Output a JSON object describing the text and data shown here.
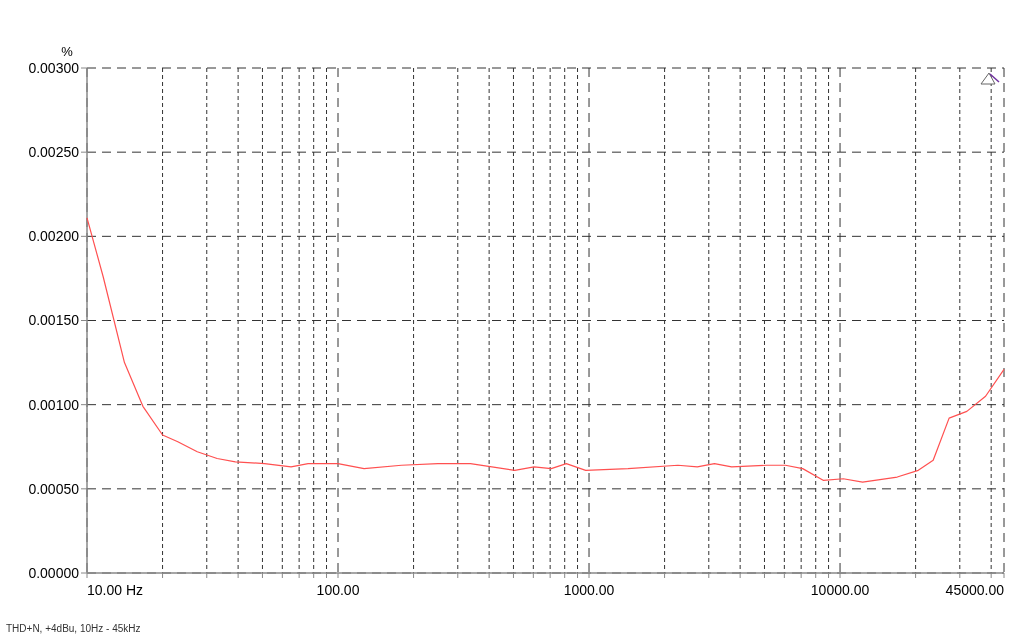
{
  "chart_data": {
    "type": "line",
    "ylabel": "%",
    "annotations": [
      "THD+N, +4dBu, 10Hz - 45kHz"
    ],
    "log": "x",
    "grid": true,
    "marker": "none",
    "line_style": "solid",
    "xlim": [
      10,
      45000
    ],
    "ylim": [
      0,
      0.003
    ],
    "xticks": [
      {
        "value": 10,
        "label": "10.00 Hz"
      },
      {
        "value": 20,
        "label": null
      },
      {
        "value": 30,
        "label": null
      },
      {
        "value": 40,
        "label": null
      },
      {
        "value": 50,
        "label": null
      },
      {
        "value": 60,
        "label": null
      },
      {
        "value": 70,
        "label": null
      },
      {
        "value": 80,
        "label": null
      },
      {
        "value": 90,
        "label": null
      },
      {
        "value": 100,
        "label": "100.00"
      },
      {
        "value": 200,
        "label": null
      },
      {
        "value": 300,
        "label": null
      },
      {
        "value": 400,
        "label": null
      },
      {
        "value": 500,
        "label": null
      },
      {
        "value": 600,
        "label": null
      },
      {
        "value": 700,
        "label": null
      },
      {
        "value": 800,
        "label": null
      },
      {
        "value": 900,
        "label": null
      },
      {
        "value": 1000,
        "label": "1000.00"
      },
      {
        "value": 2000,
        "label": null
      },
      {
        "value": 3000,
        "label": null
      },
      {
        "value": 4000,
        "label": null
      },
      {
        "value": 5000,
        "label": null
      },
      {
        "value": 6000,
        "label": null
      },
      {
        "value": 7000,
        "label": null
      },
      {
        "value": 8000,
        "label": null
      },
      {
        "value": 9000,
        "label": null
      },
      {
        "value": 10000,
        "label": "10000.00"
      },
      {
        "value": 20000,
        "label": null
      },
      {
        "value": 30000,
        "label": null
      },
      {
        "value": 40000,
        "label": null
      },
      {
        "value": 45000,
        "label": "45000.00"
      }
    ],
    "yticks": [
      {
        "value": 0,
        "label": "0.00000"
      },
      {
        "value": 0.0005,
        "label": "0.00050"
      },
      {
        "value": 0.001,
        "label": "0.00100"
      },
      {
        "value": 0.0015,
        "label": "0.00150"
      },
      {
        "value": 0.002,
        "label": "0.00200"
      },
      {
        "value": 0.0025,
        "label": "0.00250"
      },
      {
        "value": 0.003,
        "label": "0.00300"
      }
    ],
    "series": [
      {
        "color": "#ff5050",
        "x": [
          10,
          11.6,
          14.1,
          16.7,
          20,
          23,
          27.5,
          33,
          39,
          51,
          65,
          76,
          100,
          127,
          179,
          250,
          337,
          506,
          604,
          707,
          812,
          970,
          1430,
          2260,
          2700,
          3160,
          3700,
          5100,
          6060,
          7100,
          8600,
          10300,
          12300,
          16900,
          20500,
          23500,
          27200,
          32000,
          38000,
          45000
        ],
        "values": [
          0.00211,
          0.00176,
          0.00125,
          0.00099,
          0.00082,
          0.00078,
          0.00072,
          0.00068,
          0.00066,
          0.00065,
          0.00063,
          0.00065,
          0.00065,
          0.00062,
          0.00064,
          0.00065,
          0.00065,
          0.00061,
          0.00063,
          0.00062,
          0.00065,
          0.00061,
          0.00062,
          0.00064,
          0.00063,
          0.00065,
          0.00063,
          0.00064,
          0.00064,
          0.00062,
          0.00055,
          0.00056,
          0.00054,
          0.00057,
          0.00061,
          0.00067,
          0.00092,
          0.00096,
          0.00105,
          0.00121
        ]
      }
    ]
  }
}
